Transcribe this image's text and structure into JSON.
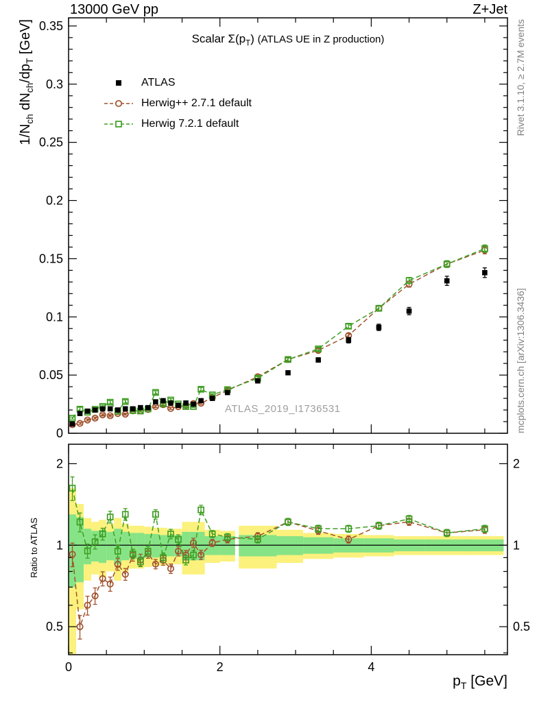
{
  "header": {
    "left": "13000 GeV pp",
    "right": "Z+Jet"
  },
  "title": {
    "prefix": "Scalar ",
    "symbol": "Σ(p",
    "symbol_sub": "T",
    "symbol_close": ") ",
    "detail": "(ATLAS UE in Z production)"
  },
  "watermark": "ATLAS_2019_I1736531",
  "side_notes": {
    "rivet": "Rivet 3.1.10, ≥ 2.7M events",
    "mcplots": "mcplots.cern.ch [arXiv:1306.3436]"
  },
  "axis_labels": {
    "y": {
      "p1": "1/N",
      "s1": "ch",
      "p2": " dN",
      "s2": "ch",
      "p3": "/dp",
      "s3": "T",
      "p4": " [GeV]"
    },
    "x": {
      "p1": "p",
      "s1": "T",
      "p2": " [GeV]"
    },
    "ratio": "Ratio to ATLAS"
  },
  "chart_data": [
    {
      "type": "scatter",
      "title": "Scalar Σ(pT) (ATLAS UE in Z production)",
      "xlabel": "pT [GeV]",
      "ylabel": "1/Nch dNch/dpT [GeV]",
      "xlim": [
        0,
        5.8
      ],
      "ylim": [
        0,
        0.357
      ],
      "x_ticks": [
        0,
        2,
        4
      ],
      "x_minor_step": 0.5,
      "y_ticks": [
        0,
        0.05,
        0.1,
        0.15,
        0.2,
        0.25,
        0.3,
        0.35
      ],
      "y_minor_step": 0.01,
      "legend_position": "top-left",
      "grid": false,
      "x": [
        0.05,
        0.15,
        0.25,
        0.35,
        0.45,
        0.55,
        0.65,
        0.75,
        0.85,
        0.95,
        1.05,
        1.15,
        1.25,
        1.35,
        1.45,
        1.55,
        1.65,
        1.75,
        1.9,
        2.1,
        2.5,
        2.9,
        3.3,
        3.7,
        4.1,
        4.5,
        5.0,
        5.5
      ],
      "xerr": [
        0.05,
        0.05,
        0.05,
        0.05,
        0.05,
        0.05,
        0.05,
        0.05,
        0.05,
        0.05,
        0.05,
        0.05,
        0.05,
        0.05,
        0.05,
        0.05,
        0.05,
        0.05,
        0.1,
        0.1,
        0.25,
        0.2,
        0.2,
        0.2,
        0.2,
        0.2,
        0.3,
        0.25
      ],
      "series": [
        {
          "name": "ATLAS",
          "marker": "filled-square",
          "color": "#000000",
          "line": "none",
          "values": [
            0.008,
            0.017,
            0.019,
            0.02,
            0.021,
            0.021,
            0.02,
            0.021,
            0.021,
            0.022,
            0.022,
            0.027,
            0.028,
            0.026,
            0.024,
            0.026,
            0.025,
            0.028,
            0.03,
            0.035,
            0.045,
            0.052,
            0.063,
            0.08,
            0.091,
            0.105,
            0.131,
            0.138
          ],
          "yerr_rel": [
            0.1,
            0.05,
            0.04,
            0.04,
            0.04,
            0.04,
            0.04,
            0.04,
            0.04,
            0.04,
            0.04,
            0.04,
            0.04,
            0.04,
            0.04,
            0.04,
            0.04,
            0.04,
            0.03,
            0.03,
            0.03,
            0.03,
            0.03,
            0.03,
            0.03,
            0.03,
            0.03,
            0.03
          ]
        },
        {
          "name": "Herwig++ 2.7.1 default",
          "marker": "open-circle",
          "color": "#a0522d",
          "line": "dashed",
          "values": [
            0.0074,
            0.0085,
            0.0114,
            0.013,
            0.0158,
            0.0151,
            0.017,
            0.0164,
            0.0193,
            0.0194,
            0.0205,
            0.023,
            0.0246,
            0.0213,
            0.0228,
            0.0239,
            0.0255,
            0.0258,
            0.0306,
            0.0368,
            0.0486,
            0.0634,
            0.0712,
            0.084,
            0.1074,
            0.1281,
            0.1454,
            0.1573
          ],
          "yerr_rel": [
            0.09,
            0.1,
            0.08,
            0.07,
            0.06,
            0.06,
            0.05,
            0.05,
            0.05,
            0.05,
            0.04,
            0.04,
            0.04,
            0.04,
            0.04,
            0.04,
            0.04,
            0.04,
            0.03,
            0.03,
            0.03,
            0.03,
            0.02,
            0.02,
            0.02,
            0.02,
            0.02,
            0.02
          ]
        },
        {
          "name": "Herwig 7.2.1 default",
          "marker": "open-square",
          "color": "#3f9e23",
          "line": "dashed",
          "values": [
            0.013,
            0.0207,
            0.0181,
            0.0206,
            0.0231,
            0.0267,
            0.019,
            0.0273,
            0.0195,
            0.0191,
            0.0209,
            0.0351,
            0.0252,
            0.0286,
            0.0252,
            0.0229,
            0.023,
            0.0378,
            0.033,
            0.0375,
            0.0473,
            0.0634,
            0.0725,
            0.092,
            0.1074,
            0.1313,
            0.1454,
            0.1587
          ],
          "yerr_rel": [
            0.07,
            0.08,
            0.06,
            0.06,
            0.05,
            0.05,
            0.05,
            0.05,
            0.04,
            0.04,
            0.04,
            0.04,
            0.04,
            0.04,
            0.04,
            0.04,
            0.04,
            0.04,
            0.03,
            0.03,
            0.03,
            0.02,
            0.02,
            0.02,
            0.02,
            0.02,
            0.02,
            0.02
          ]
        }
      ]
    },
    {
      "type": "ratio",
      "ylabel": "Ratio to ATLAS",
      "yscale": "log",
      "ylim": [
        0.394,
        2.36
      ],
      "y_ticks": [
        0.5,
        1,
        2
      ],
      "y_minor_ticks": [
        0.4,
        0.6,
        0.7,
        0.8,
        0.9
      ],
      "x_ticks": [
        0,
        2,
        4
      ],
      "reference": 1,
      "bands": [
        {
          "name": "data-uncertainty-outer",
          "color": "#fbf17c",
          "rel": [
            0.62,
            0.42,
            0.26,
            0.22,
            0.24,
            0.2,
            0.26,
            0.2,
            0.18,
            0.18,
            0.17,
            0.16,
            0.16,
            0.15,
            0.15,
            0.22,
            0.22,
            0.22,
            0.14,
            0.13,
            0.18,
            0.14,
            0.11,
            0.1,
            0.09,
            0.08,
            0.08,
            0.08
          ]
        },
        {
          "name": "data-uncertainty-inner",
          "color": "#86e386",
          "rel": [
            0.3,
            0.27,
            0.15,
            0.13,
            0.14,
            0.12,
            0.15,
            0.12,
            0.11,
            0.11,
            0.1,
            0.1,
            0.09,
            0.09,
            0.09,
            0.12,
            0.12,
            0.12,
            0.08,
            0.08,
            0.09,
            0.08,
            0.07,
            0.06,
            0.06,
            0.05,
            0.05,
            0.05
          ]
        }
      ]
    }
  ]
}
